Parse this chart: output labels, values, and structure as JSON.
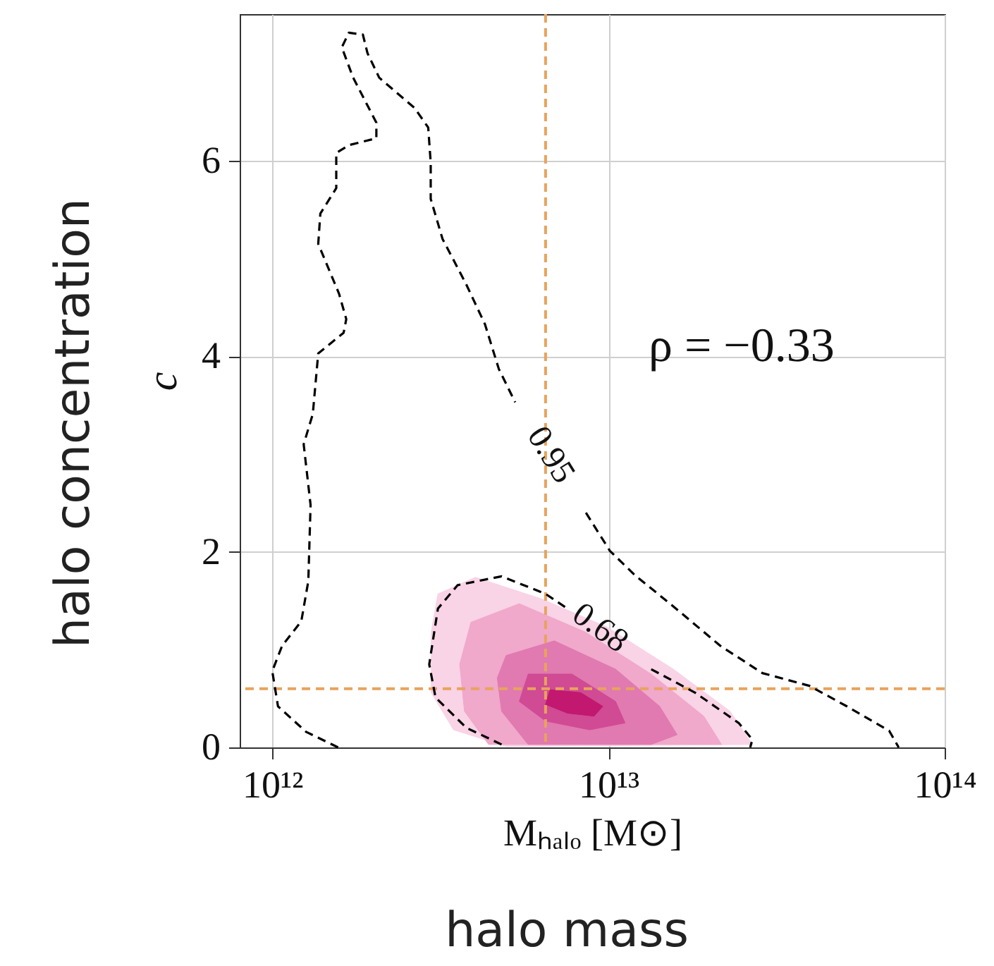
{
  "chart_data": {
    "type": "line",
    "xlabel": "Mₕₐₗₒ [M⊙]",
    "ylabel": "c",
    "log": "x",
    "grid": true,
    "xlim": [
      800000000000.0,
      100000000000000.0
    ],
    "xticks": [
      {
        "value": 1000000000000.0,
        "label": "10¹²"
      },
      {
        "value": 10000000000000.0,
        "label": "10¹³"
      },
      {
        "value": 100000000000000.0,
        "label": "10¹⁴"
      }
    ],
    "ylim": [
      0,
      7.5
    ],
    "yticks": [
      0,
      2,
      4,
      6
    ],
    "series": [
      {
        "type": "area",
        "color": "#f9d3e6",
        "x": [
          3110000000000.0,
          4020000000000.0,
          6310000000000.0,
          9910000000000.0,
          15600000000000.0,
          23000000000000.0,
          26800000000000.0,
          4960000000000.0,
          3460000000000.0,
          2970000000000.0,
          2970000000000.0,
          3110000000000.0
        ],
        "values": [
          1.57,
          1.74,
          1.52,
          1.23,
          0.8,
          0.37,
          0.03,
          0.01,
          0.18,
          0.56,
          1.18,
          1.57
        ]
      },
      {
        "type": "area",
        "color": "#f0a8cb",
        "x": [
          3900000000000.0,
          5430000000000.0,
          8530000000000.0,
          13400000000000.0,
          19200000000000.0,
          21700000000000.0,
          4400000000000.0,
          3730000000000.0,
          3610000000000.0,
          3900000000000.0
        ],
        "values": [
          1.28,
          1.47,
          1.18,
          0.75,
          0.32,
          0.03,
          0.03,
          0.37,
          0.85,
          1.28
        ]
      },
      {
        "type": "area",
        "color": "#e07ab0",
        "x": [
          4960000000000.0,
          6900000000000.0,
          10500000000000.0,
          14200000000000.0,
          16000000000000.0,
          13400000000000.0,
          5770000000000.0,
          4810000000000.0,
          4670000000000.0,
          4960000000000.0
        ],
        "values": [
          0.94,
          1.09,
          0.8,
          0.42,
          0.13,
          0.03,
          0.03,
          0.37,
          0.71,
          0.94
        ]
      },
      {
        "type": "area",
        "color": "#d04a94",
        "x": [
          5770000000000.0,
          7790000000000.0,
          10500000000000.0,
          11200000000000.0,
          8790000000000.0,
          6500000000000.0,
          5430000000000.0,
          5770000000000.0
        ],
        "values": [
          0.75,
          0.75,
          0.47,
          0.25,
          0.18,
          0.27,
          0.47,
          0.75
        ]
      },
      {
        "type": "area",
        "color": "#c2186f",
        "x": [
          6700000000000.0,
          8270000000000.0,
          9620000000000.0,
          9060000000000.0,
          7560000000000.0,
          6500000000000.0,
          6700000000000.0
        ],
        "values": [
          0.59,
          0.56,
          0.42,
          0.32,
          0.35,
          0.44,
          0.59
        ]
      },
      {
        "color": "#000000",
        "line_style": "dashed",
        "x": [
          1570000000000.0,
          1260000000000.0,
          1040000000000.0,
          1000000000000.0,
          1070000000000.0,
          1220000000000.0,
          1280000000000.0,
          1300000000000.0,
          1240000000000.0,
          1320000000000.0,
          1370000000000.0,
          1630000000000.0,
          1660000000000.0,
          1580000000000.0,
          1370000000000.0,
          1390000000000.0,
          1550000000000.0,
          1550000000000.0,
          1690000000000.0,
          2040000000000.0,
          2040000000000.0,
          1740000000000.0,
          1610000000000.0,
          1690000000000.0,
          1860000000000.0,
          1920000000000.0,
          2080000000000.0,
          2650000000000.0,
          2910000000000.0,
          2960000000000.0,
          2960000000000.0,
          3210000000000.0,
          3770000000000.0,
          4290000000000.0,
          4720000000000.0,
          5280000000000.0,
          6500000000000.0,
          8570000000000.0,
          10100000000000.0,
          12000000000000.0,
          15500000000000.0,
          21500000000000.0,
          28700000000000.0,
          39600000000000.0,
          51200000000000.0,
          68400000000000.0,
          73000000000000.0
        ],
        "values": [
          0,
          0.16,
          0.42,
          0.78,
          1.04,
          1.29,
          1.7,
          2.48,
          3.1,
          3.41,
          4.03,
          4.24,
          4.38,
          4.64,
          5.15,
          5.46,
          5.72,
          6.08,
          6.16,
          6.23,
          6.39,
          6.85,
          7.16,
          7.31,
          7.29,
          7.1,
          6.85,
          6.54,
          6.34,
          5.98,
          5.61,
          5.2,
          4.74,
          4.33,
          3.87,
          3.53,
          null,
          2.4,
          2.01,
          1.76,
          1.45,
          1.04,
          0.76,
          0.63,
          0.42,
          0.17,
          0
        ]
      },
      {
        "color": "#000000",
        "line_style": "dashed",
        "x": [
          4810000000000.0,
          3780000000000.0,
          3060000000000.0,
          2930000000000.0,
          3110000000000.0,
          3560000000000.0,
          4810000000000.0,
          6500000000000.0,
          7550000000000.0,
          10000000000000.0,
          13400000000000.0,
          18100000000000.0,
          24400000000000.0,
          26800000000000.0,
          26400000000000.0
        ],
        "values": [
          0.03,
          0.2,
          0.51,
          0.85,
          1.42,
          1.66,
          1.75,
          1.57,
          1.42,
          null,
          0.8,
          0.56,
          0.25,
          0.08,
          0
        ]
      }
    ],
    "ref_lines": [
      {
        "axis": "x",
        "value": 6500000000000.0,
        "color": "#e8a35c",
        "line_style": "dashed"
      },
      {
        "axis": "y",
        "value": 0.6,
        "color": "#e8a35c",
        "line_style": "dashed"
      }
    ],
    "annotations": [
      "ρ = −0.33",
      {
        "text": "0.95",
        "x": 6730000000000.0,
        "y": 2.99
      },
      {
        "text": "0.68",
        "x": 9440000000000.0,
        "y": 1.22
      },
      "halo concentration",
      "halo mass"
    ]
  }
}
